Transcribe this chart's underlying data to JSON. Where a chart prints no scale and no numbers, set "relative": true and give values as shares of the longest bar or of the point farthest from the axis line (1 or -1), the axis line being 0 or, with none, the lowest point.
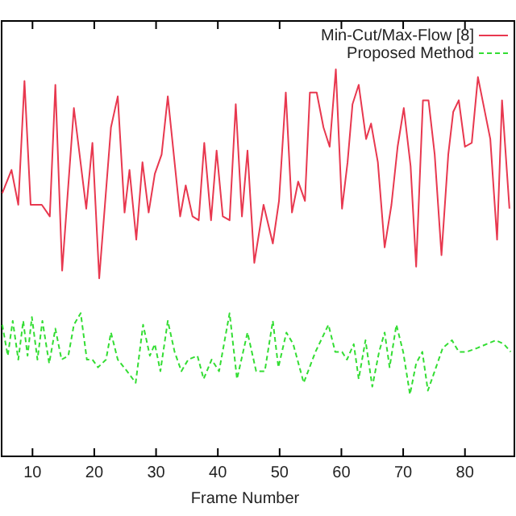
{
  "chart_data": {
    "type": "line",
    "xlabel": "Frame Number",
    "relative": true,
    "xlim": [
      5,
      88
    ],
    "xticks": [
      10,
      20,
      30,
      40,
      50,
      60,
      70,
      80
    ],
    "legend": "top right",
    "grid": false,
    "series": [
      {
        "name": "Min-Cut/Max-Flow [8]",
        "color": "#e8384f",
        "line_style": "solid",
        "x": [
          5.1,
          6.6,
          7.7,
          8.7,
          9.7,
          11.5,
          12.8,
          13.7,
          14.8,
          16.7,
          18.7,
          19.7,
          20.8,
          22.7,
          23.8,
          24.9,
          25.7,
          26.8,
          27.8,
          28.8,
          29.8,
          30.9,
          31.9,
          33.9,
          34.8,
          35.9,
          36.9,
          37.8,
          38.9,
          39.8,
          40.8,
          41.9,
          42.9,
          43.9,
          44.8,
          45.9,
          47.4,
          48.9,
          49.9,
          51.0,
          52.0,
          53.0,
          54.1,
          54.9,
          56.0,
          57.1,
          58.1,
          59.1,
          60.1,
          61.0,
          61.8,
          62.8,
          64.0,
          64.8,
          65.9,
          67.0,
          68.1,
          69.1,
          70.1,
          71.2,
          72.1,
          73.2,
          74.1,
          75.1,
          76.2,
          77.3,
          78.1,
          79.0,
          80.0,
          81.1,
          82.1,
          84.1,
          85.2,
          86.0,
          87.2
        ],
        "values": [
          0.68,
          0.74,
          0.65,
          0.97,
          0.65,
          0.65,
          0.62,
          0.96,
          0.48,
          0.9,
          0.64,
          0.81,
          0.46,
          0.85,
          0.93,
          0.63,
          0.74,
          0.56,
          0.76,
          0.63,
          0.73,
          0.78,
          0.93,
          0.62,
          0.7,
          0.62,
          0.61,
          0.81,
          0.61,
          0.79,
          0.62,
          0.61,
          0.91,
          0.62,
          0.79,
          0.5,
          0.65,
          0.55,
          0.66,
          0.94,
          0.63,
          0.71,
          0.66,
          0.94,
          0.94,
          0.85,
          0.8,
          1.0,
          0.64,
          0.76,
          0.91,
          0.96,
          0.82,
          0.86,
          0.76,
          0.54,
          0.65,
          0.8,
          0.9,
          0.75,
          0.49,
          0.92,
          0.92,
          0.78,
          0.52,
          0.78,
          0.89,
          0.92,
          0.8,
          0.81,
          0.98,
          0.82,
          0.56,
          0.92,
          0.64
        ]
      },
      {
        "name": "Proposed Method",
        "color": "#33dd33",
        "line_style": "dashed",
        "x": [
          5.1,
          6.0,
          6.8,
          7.7,
          8.5,
          9.2,
          9.9,
          10.8,
          11.6,
          12.7,
          13.7,
          14.7,
          15.8,
          16.7,
          17.8,
          18.8,
          19.7,
          20.6,
          21.9,
          22.7,
          23.8,
          25.3,
          26.7,
          27.9,
          29.0,
          29.8,
          30.7,
          31.9,
          33.0,
          34.1,
          35.2,
          36.7,
          37.7,
          39.0,
          40.2,
          41.9,
          43.1,
          44.8,
          46.2,
          47.6,
          48.9,
          49.8,
          51.1,
          52.2,
          53.9,
          55.8,
          57.9,
          59.0,
          60.1,
          60.9,
          62.0,
          62.8,
          63.9,
          65.0,
          66.1,
          67.0,
          67.8,
          68.9,
          70.0,
          71.1,
          72.1,
          73.1,
          74.0,
          75.1,
          76.4,
          77.9,
          79.0,
          80.3,
          82.0,
          85.0,
          86.3,
          87.4
        ],
        "values": [
          0.34,
          0.26,
          0.35,
          0.25,
          0.35,
          0.26,
          0.36,
          0.25,
          0.35,
          0.24,
          0.33,
          0.25,
          0.26,
          0.34,
          0.37,
          0.25,
          0.25,
          0.23,
          0.25,
          0.32,
          0.25,
          0.22,
          0.19,
          0.34,
          0.26,
          0.29,
          0.22,
          0.35,
          0.27,
          0.22,
          0.25,
          0.26,
          0.2,
          0.25,
          0.22,
          0.37,
          0.2,
          0.32,
          0.22,
          0.22,
          0.35,
          0.23,
          0.32,
          0.29,
          0.19,
          0.27,
          0.34,
          0.27,
          0.27,
          0.25,
          0.29,
          0.2,
          0.3,
          0.18,
          0.27,
          0.32,
          0.23,
          0.34,
          0.27,
          0.16,
          0.24,
          0.27,
          0.17,
          0.22,
          0.28,
          0.3,
          0.27,
          0.27,
          0.28,
          0.3,
          0.29,
          0.27
        ]
      }
    ]
  }
}
